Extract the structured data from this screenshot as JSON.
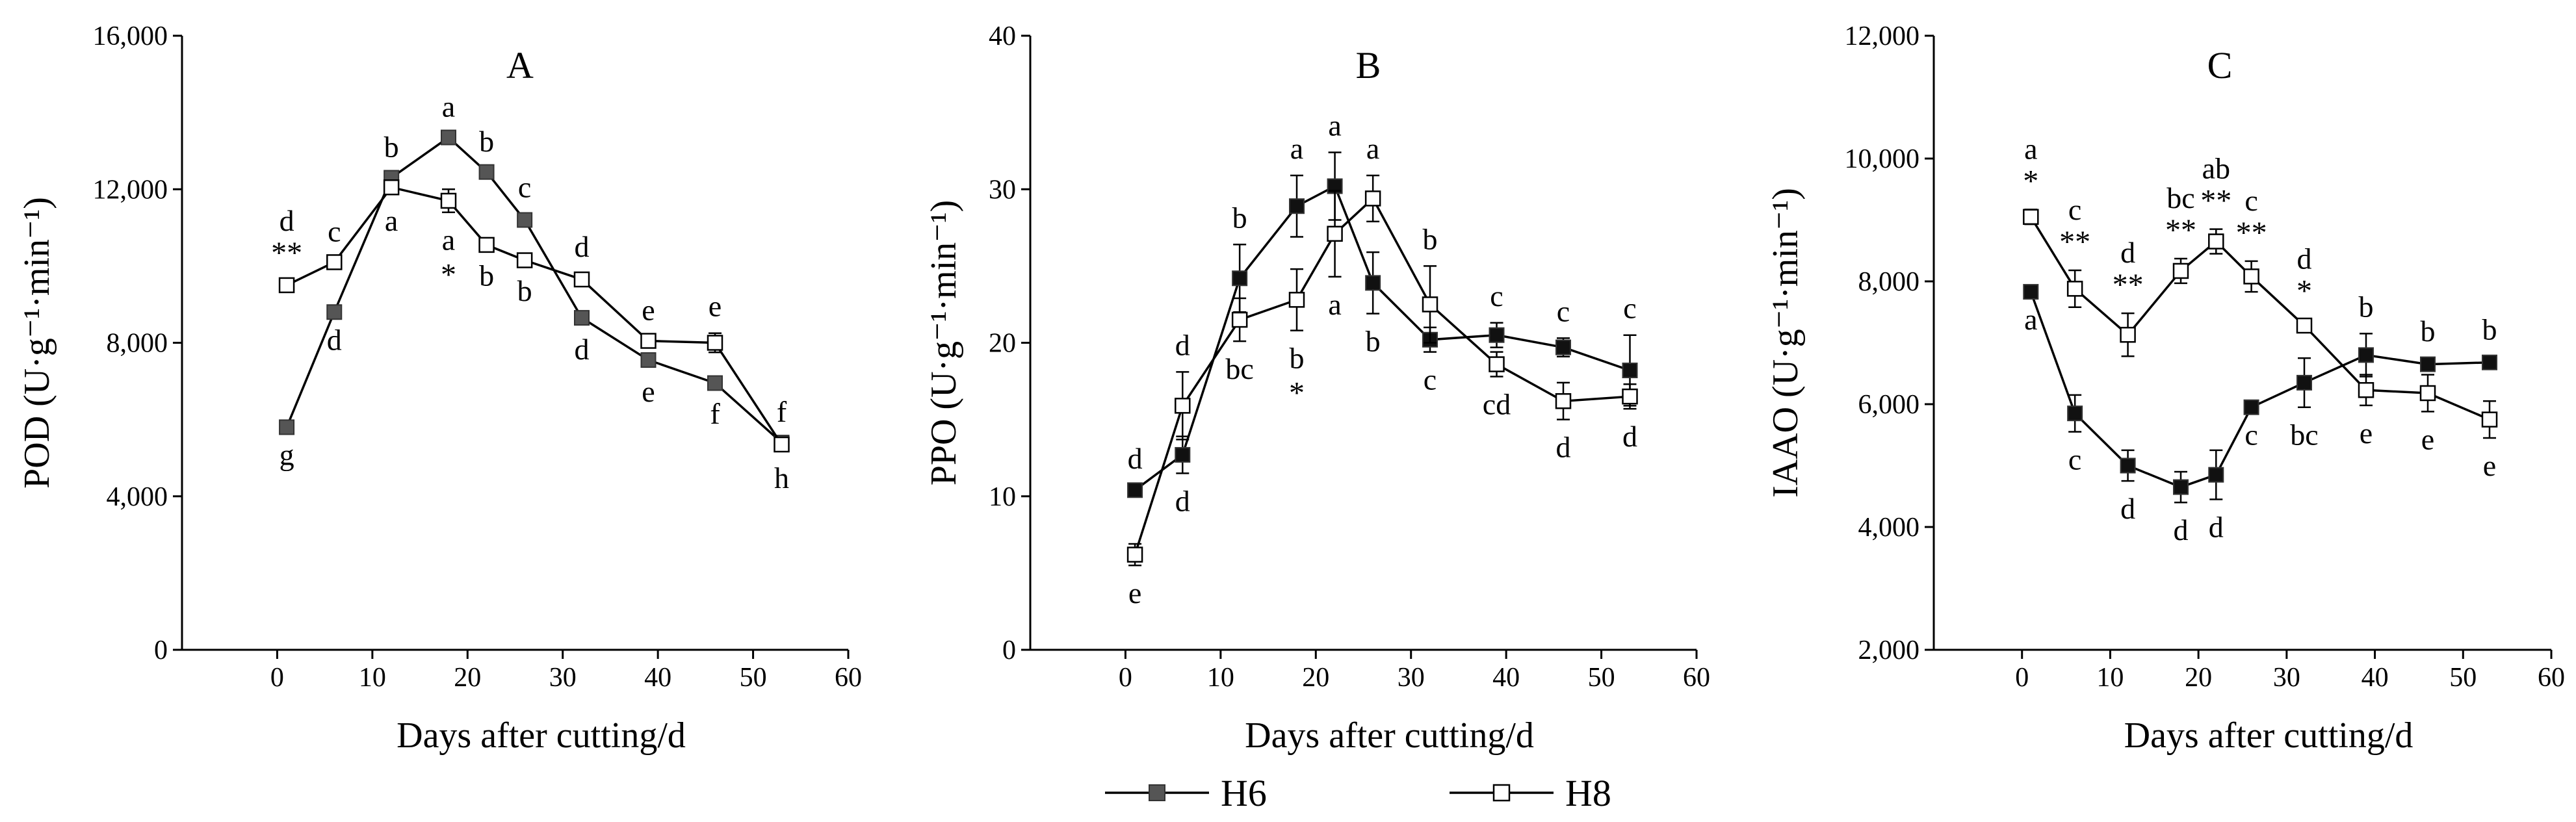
{
  "chart_data": [
    {
      "type": "line",
      "title": "A",
      "xlabel": "Days after cutting/d",
      "ylabel": "POD (U·g⁻¹·min⁻¹)",
      "xlim": [
        -10,
        60
      ],
      "ylim": [
        0,
        16000
      ],
      "xticks": [
        0,
        10,
        20,
        30,
        40,
        50,
        60
      ],
      "xtick_labels": [
        "0",
        "10",
        "20",
        "30",
        "40",
        "50",
        "60"
      ],
      "yticks": [
        0,
        4000,
        8000,
        12000,
        16000
      ],
      "ytick_labels": [
        "0",
        "4,000",
        "8,000",
        "12,000",
        "16,000"
      ],
      "x": [
        1,
        6,
        12,
        18,
        22,
        26,
        32,
        39,
        46,
        53
      ],
      "series": [
        {
          "name": "H6",
          "marker": "filled-square",
          "values": [
            5800,
            8800,
            12300,
            13350,
            12450,
            11200,
            8650,
            7550,
            6950,
            5400
          ],
          "errors": [
            0,
            0,
            100,
            100,
            100,
            150,
            100,
            100,
            80,
            100
          ],
          "letters": [
            "g",
            "d",
            "b",
            "a",
            "b",
            "c",
            "d",
            "e",
            "f",
            "f"
          ],
          "stars": [
            "",
            "",
            "",
            "",
            "",
            "",
            "",
            "",
            "",
            ""
          ]
        },
        {
          "name": "H8",
          "marker": "open-square",
          "values": [
            9500,
            10100,
            12050,
            11700,
            10550,
            10150,
            9650,
            8050,
            8000,
            5350
          ],
          "errors": [
            100,
            100,
            150,
            300,
            80,
            80,
            150,
            100,
            250,
            150
          ],
          "letters": [
            "d",
            "c",
            "a",
            "a",
            "b",
            "b",
            "d",
            "e",
            "e",
            "h"
          ],
          "stars": [
            "**",
            "",
            "",
            "*",
            "",
            "",
            "",
            "",
            "",
            ""
          ]
        }
      ]
    },
    {
      "type": "line",
      "title": "B",
      "xlabel": "Days after cutting/d",
      "ylabel": "PPO (U·g⁻¹·min⁻¹)",
      "xlim": [
        -10,
        60
      ],
      "ylim": [
        0,
        40
      ],
      "xticks": [
        0,
        10,
        20,
        30,
        40,
        50,
        60
      ],
      "xtick_labels": [
        "0",
        "10",
        "20",
        "30",
        "40",
        "50",
        "60"
      ],
      "yticks": [
        0,
        10,
        20,
        30,
        40
      ],
      "ytick_labels": [
        "0",
        "10",
        "20",
        "30",
        "40"
      ],
      "x": [
        1,
        6,
        12,
        18,
        22,
        26,
        32,
        39,
        46,
        53
      ],
      "series": [
        {
          "name": "H6",
          "marker": "filled-square",
          "values": [
            10.4,
            12.7,
            24.2,
            28.9,
            30.2,
            23.9,
            20.2,
            20.5,
            19.7,
            18.2
          ],
          "errors": [
            0.3,
            1.2,
            2.2,
            2.0,
            2.2,
            2.0,
            0.8,
            0.8,
            0.6,
            2.3
          ],
          "letters": [
            "d",
            "d",
            "b",
            "a",
            "a",
            "b",
            "c",
            "c",
            "c",
            "c"
          ],
          "stars": [
            "",
            "",
            "",
            "",
            "",
            "",
            "",
            "",
            "",
            ""
          ]
        },
        {
          "name": "H8",
          "marker": "open-square",
          "values": [
            6.2,
            15.9,
            21.5,
            22.8,
            27.1,
            29.4,
            22.5,
            18.6,
            16.2,
            16.5
          ],
          "errors": [
            0.7,
            2.2,
            1.4,
            2.0,
            2.8,
            1.5,
            2.5,
            0.8,
            1.2,
            0.8
          ],
          "letters": [
            "e",
            "d",
            "bc",
            "b",
            "a",
            "a",
            "b",
            "cd",
            "d",
            "d"
          ],
          "stars": [
            "",
            "",
            "",
            "*",
            "",
            "",
            "",
            "",
            "",
            ""
          ]
        }
      ]
    },
    {
      "type": "line",
      "title": "C",
      "xlabel": "Days after cutting/d",
      "ylabel": "IAAO (U·g⁻¹·min⁻¹)",
      "xlim": [
        -10,
        60
      ],
      "ylim": [
        2000,
        12000
      ],
      "xticks": [
        0,
        10,
        20,
        30,
        40,
        50,
        60
      ],
      "xtick_labels": [
        "0",
        "10",
        "20",
        "30",
        "40",
        "50",
        "60"
      ],
      "yticks": [
        2000,
        4000,
        6000,
        8000,
        10000,
        12000
      ],
      "ytick_labels": [
        "2,000",
        "4,000",
        "6,000",
        "8,000",
        "10,000",
        "12,000"
      ],
      "x": [
        1,
        6,
        12,
        18,
        22,
        26,
        32,
        39,
        46,
        53
      ],
      "series": [
        {
          "name": "H6",
          "marker": "filled-square",
          "values": [
            7830,
            5850,
            5000,
            4650,
            4850,
            5950,
            6350,
            6800,
            6650,
            6680
          ],
          "errors": [
            0,
            300,
            250,
            250,
            400,
            0,
            400,
            350,
            100,
            100
          ],
          "letters": [
            "a",
            "c",
            "d",
            "d",
            "d",
            "c",
            "bc",
            "b",
            "b",
            "b"
          ],
          "stars": [
            "",
            "",
            "",
            "",
            "",
            "",
            "",
            "",
            "",
            ""
          ]
        },
        {
          "name": "H8",
          "marker": "open-square",
          "values": [
            9050,
            7880,
            7130,
            8170,
            8650,
            8080,
            7280,
            6230,
            6180,
            5750
          ],
          "errors": [
            120,
            300,
            350,
            200,
            200,
            250,
            100,
            250,
            300,
            300
          ],
          "letters": [
            "a",
            "c",
            "d",
            "bc",
            "ab",
            "c",
            "d",
            "e",
            "e",
            "e"
          ],
          "stars": [
            "*",
            "**",
            "**",
            "**",
            "**",
            "**",
            "*",
            "",
            "",
            ""
          ]
        }
      ]
    }
  ],
  "legend": {
    "items": [
      {
        "label": "H6",
        "marker": "filled-square"
      },
      {
        "label": "H8",
        "marker": "open-square"
      }
    ]
  }
}
